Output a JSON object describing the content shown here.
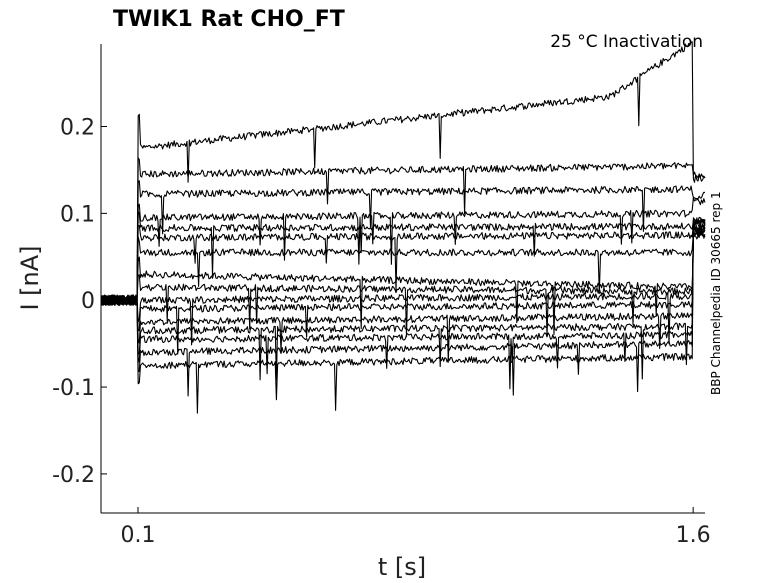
{
  "chart_data": {
    "type": "line",
    "title": "TWIK1  Rat  CHO_FT",
    "subtitle": "25 °C  Inactivation",
    "side_label": "BBP Channelpedia ID 30665 rep 1",
    "xlabel": "t [s]",
    "ylabel": "I [nA]",
    "xlim": [
      0.0,
      1.632
    ],
    "ylim": [
      -0.245,
      0.295
    ],
    "x_ticks": [
      {
        "value": 0.1,
        "label": "0.1"
      },
      {
        "value": 1.6,
        "label": "1.6"
      }
    ],
    "y_ticks": [
      {
        "value": -0.2,
        "label": "-0.2"
      },
      {
        "value": -0.1,
        "label": "-0.1"
      },
      {
        "value": 0,
        "label": "0"
      },
      {
        "value": 0.1,
        "label": "0.1"
      },
      {
        "value": 0.2,
        "label": "0.2"
      }
    ],
    "grid": false,
    "pulse": {
      "start": 0.1,
      "end": 1.6,
      "tail_end": 1.7
    },
    "series_levels": [
      {
        "start": 0.175,
        "end": 0.245,
        "after": 0.14
      },
      {
        "start": 0.145,
        "end": 0.155,
        "after": 0.145
      },
      {
        "start": 0.122,
        "end": 0.128,
        "after": 0.12
      },
      {
        "start": 0.095,
        "end": 0.1,
        "after": 0.115
      },
      {
        "start": 0.083,
        "end": 0.085,
        "after": 0.09
      },
      {
        "start": 0.072,
        "end": 0.075,
        "after": 0.085
      },
      {
        "start": 0.055,
        "end": 0.055,
        "after": 0.08
      },
      {
        "start": 0.03,
        "end": 0.015,
        "after": 0.075
      },
      {
        "start": 0.015,
        "end": 0.01,
        "after": 0.075
      },
      {
        "start": 0.0,
        "end": 0.005,
        "after": 0.078
      },
      {
        "start": -0.01,
        "end": -0.005,
        "after": 0.08
      },
      {
        "start": -0.025,
        "end": -0.018,
        "after": 0.082
      },
      {
        "start": -0.035,
        "end": -0.03,
        "after": 0.085
      },
      {
        "start": -0.045,
        "end": -0.04,
        "after": 0.088
      },
      {
        "start": -0.06,
        "end": -0.05,
        "after": 0.09
      },
      {
        "start": -0.075,
        "end": -0.065,
        "after": 0.092
      }
    ]
  }
}
